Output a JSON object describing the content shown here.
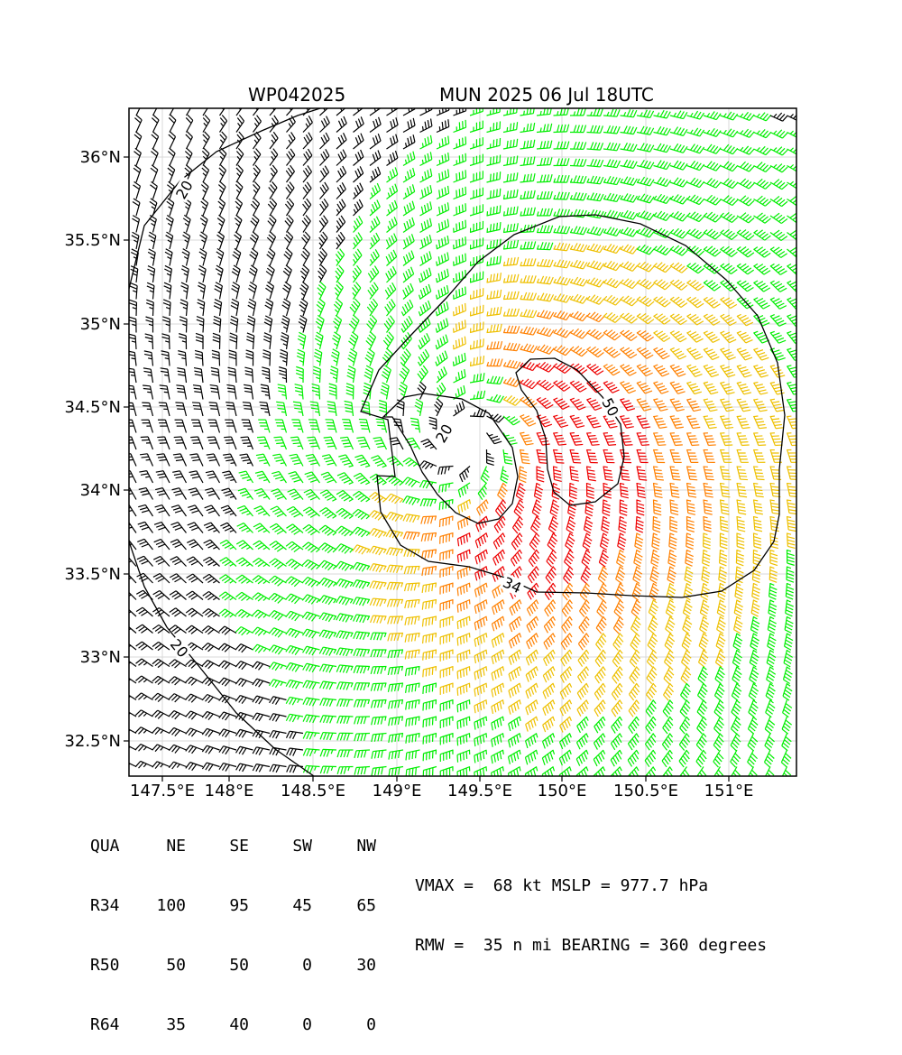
{
  "header": {
    "storm_id": "WP042025",
    "storm_time": "MUN 2025 06 Jul 18UTC"
  },
  "map": {
    "lon_labels": [
      "147.5°E",
      "148°E",
      "148.5°E",
      "149°E",
      "149.5°E",
      "150°E",
      "150.5°E",
      "151°E"
    ],
    "lat_labels": [
      "36°N",
      "35.5°N",
      "35°N",
      "34.5°N",
      "34°N",
      "33.5°N",
      "33°N",
      "32.5°N"
    ],
    "contour_labels": [
      "20",
      "34",
      "50",
      "20",
      "20"
    ],
    "wind_barb_colors": {
      "below_34kt": "#000000",
      "34_to_49kt": "#00ee00",
      "50_to_63kt": "#eec000",
      "64_plus_kt": "#ff8000",
      "max": "#ee0000"
    },
    "icons": [
      "wind-barb-icon"
    ]
  },
  "wind_radii": {
    "headers": [
      "QUA",
      "NE",
      "SE",
      "SW",
      "NW"
    ],
    "rows": [
      [
        "R34",
        "100",
        "95",
        "45",
        "65"
      ],
      [
        "R50",
        "50",
        "50",
        "0",
        "30"
      ],
      [
        "R64",
        "35",
        "40",
        "0",
        "0"
      ]
    ]
  },
  "stats": {
    "line1": "VMAX =  68 kt MSLP = 977.7 hPa",
    "line2": "RMW =  35 n mi BEARING = 360 degrees"
  }
}
